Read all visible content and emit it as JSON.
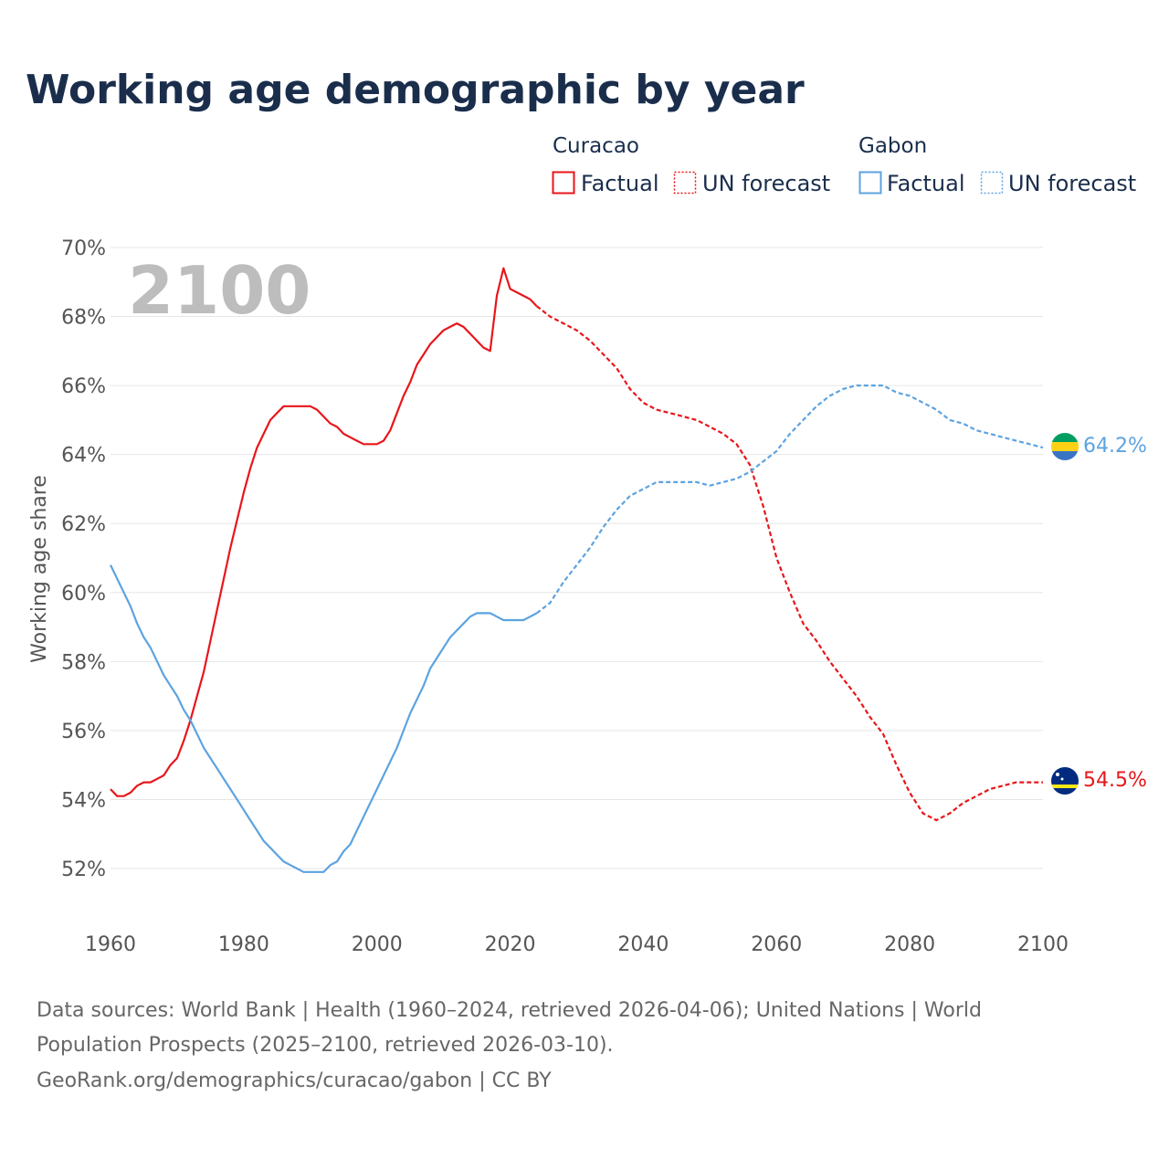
{
  "chart_data": {
    "type": "line",
    "title": "Working age demographic by year",
    "ylabel": "Working age share",
    "xlabel": "",
    "year_display": "2100",
    "xlim": [
      1960,
      2100
    ],
    "ylim": [
      51,
      70
    ],
    "x_ticks": [
      {
        "value": 1960,
        "label": "1960"
      },
      {
        "value": 1980,
        "label": "1980"
      },
      {
        "value": 2000,
        "label": "2000"
      },
      {
        "value": 2020,
        "label": "2020"
      },
      {
        "value": 2040,
        "label": "2040"
      },
      {
        "value": 2060,
        "label": "2060"
      },
      {
        "value": 2080,
        "label": "2080"
      },
      {
        "value": 2100,
        "label": "2100"
      }
    ],
    "y_ticks": [
      {
        "value": 52,
        "label": "52%"
      },
      {
        "value": 54,
        "label": "54%"
      },
      {
        "value": 56,
        "label": "56%"
      },
      {
        "value": 58,
        "label": "58%"
      },
      {
        "value": 60,
        "label": "60%"
      },
      {
        "value": 62,
        "label": "62%"
      },
      {
        "value": 64,
        "label": "64%"
      },
      {
        "value": 66,
        "label": "66%"
      },
      {
        "value": 68,
        "label": "68%"
      },
      {
        "value": 70,
        "label": "70%"
      }
    ],
    "legend": {
      "groups": [
        {
          "country": "Curacao",
          "factual_label": "Factual",
          "forecast_label": "UN forecast",
          "color": "#e8161b"
        },
        {
          "country": "Gabon",
          "factual_label": "Factual",
          "forecast_label": "UN forecast",
          "color": "#5da3e0"
        }
      ]
    },
    "series": [
      {
        "name": "Curacao",
        "color": "#e8161b",
        "end_label": "54.5%",
        "factual": [
          [
            1960,
            54.3
          ],
          [
            1961,
            54.1
          ],
          [
            1962,
            54.1
          ],
          [
            1963,
            54.2
          ],
          [
            1964,
            54.4
          ],
          [
            1965,
            54.5
          ],
          [
            1966,
            54.5
          ],
          [
            1967,
            54.6
          ],
          [
            1968,
            54.7
          ],
          [
            1969,
            55.0
          ],
          [
            1970,
            55.2
          ],
          [
            1971,
            55.7
          ],
          [
            1972,
            56.3
          ],
          [
            1973,
            57.0
          ],
          [
            1974,
            57.7
          ],
          [
            1975,
            58.6
          ],
          [
            1976,
            59.5
          ],
          [
            1977,
            60.4
          ],
          [
            1978,
            61.3
          ],
          [
            1979,
            62.1
          ],
          [
            1980,
            62.9
          ],
          [
            1981,
            63.6
          ],
          [
            1982,
            64.2
          ],
          [
            1983,
            64.6
          ],
          [
            1984,
            65.0
          ],
          [
            1985,
            65.2
          ],
          [
            1986,
            65.4
          ],
          [
            1987,
            65.4
          ],
          [
            1988,
            65.4
          ],
          [
            1989,
            65.4
          ],
          [
            1990,
            65.4
          ],
          [
            1991,
            65.3
          ],
          [
            1992,
            65.1
          ],
          [
            1993,
            64.9
          ],
          [
            1994,
            64.8
          ],
          [
            1995,
            64.6
          ],
          [
            1996,
            64.5
          ],
          [
            1997,
            64.4
          ],
          [
            1998,
            64.3
          ],
          [
            1999,
            64.3
          ],
          [
            2000,
            64.3
          ],
          [
            2001,
            64.4
          ],
          [
            2002,
            64.7
          ],
          [
            2003,
            65.2
          ],
          [
            2004,
            65.7
          ],
          [
            2005,
            66.1
          ],
          [
            2006,
            66.6
          ],
          [
            2007,
            66.9
          ],
          [
            2008,
            67.2
          ],
          [
            2009,
            67.4
          ],
          [
            2010,
            67.6
          ],
          [
            2011,
            67.7
          ],
          [
            2012,
            67.8
          ],
          [
            2013,
            67.7
          ],
          [
            2014,
            67.5
          ],
          [
            2015,
            67.3
          ],
          [
            2016,
            67.1
          ],
          [
            2017,
            67.0
          ],
          [
            2018,
            68.6
          ],
          [
            2019,
            69.4
          ],
          [
            2020,
            68.8
          ],
          [
            2021,
            68.7
          ],
          [
            2022,
            68.6
          ],
          [
            2023,
            68.5
          ],
          [
            2024,
            68.3
          ]
        ],
        "forecast": [
          [
            2024,
            68.3
          ],
          [
            2026,
            68.0
          ],
          [
            2028,
            67.8
          ],
          [
            2030,
            67.6
          ],
          [
            2032,
            67.3
          ],
          [
            2034,
            66.9
          ],
          [
            2036,
            66.5
          ],
          [
            2038,
            65.9
          ],
          [
            2040,
            65.5
          ],
          [
            2042,
            65.3
          ],
          [
            2044,
            65.2
          ],
          [
            2046,
            65.1
          ],
          [
            2048,
            65.0
          ],
          [
            2050,
            64.8
          ],
          [
            2052,
            64.6
          ],
          [
            2054,
            64.3
          ],
          [
            2056,
            63.7
          ],
          [
            2058,
            62.5
          ],
          [
            2060,
            61.0
          ],
          [
            2062,
            60.0
          ],
          [
            2064,
            59.1
          ],
          [
            2066,
            58.6
          ],
          [
            2068,
            58.0
          ],
          [
            2070,
            57.5
          ],
          [
            2072,
            57.0
          ],
          [
            2074,
            56.4
          ],
          [
            2076,
            55.9
          ],
          [
            2078,
            55.0
          ],
          [
            2080,
            54.2
          ],
          [
            2082,
            53.6
          ],
          [
            2084,
            53.4
          ],
          [
            2086,
            53.6
          ],
          [
            2088,
            53.9
          ],
          [
            2090,
            54.1
          ],
          [
            2092,
            54.3
          ],
          [
            2094,
            54.4
          ],
          [
            2096,
            54.5
          ],
          [
            2098,
            54.5
          ],
          [
            2100,
            54.5
          ]
        ]
      },
      {
        "name": "Gabon",
        "color": "#5da3e0",
        "end_label": "64.2%",
        "factual": [
          [
            1960,
            60.8
          ],
          [
            1961,
            60.4
          ],
          [
            1962,
            60.0
          ],
          [
            1963,
            59.6
          ],
          [
            1964,
            59.1
          ],
          [
            1965,
            58.7
          ],
          [
            1966,
            58.4
          ],
          [
            1967,
            58.0
          ],
          [
            1968,
            57.6
          ],
          [
            1969,
            57.3
          ],
          [
            1970,
            57.0
          ],
          [
            1971,
            56.6
          ],
          [
            1972,
            56.3
          ],
          [
            1973,
            55.9
          ],
          [
            1974,
            55.5
          ],
          [
            1975,
            55.2
          ],
          [
            1976,
            54.9
          ],
          [
            1977,
            54.6
          ],
          [
            1978,
            54.3
          ],
          [
            1979,
            54.0
          ],
          [
            1980,
            53.7
          ],
          [
            1981,
            53.4
          ],
          [
            1982,
            53.1
          ],
          [
            1983,
            52.8
          ],
          [
            1984,
            52.6
          ],
          [
            1985,
            52.4
          ],
          [
            1986,
            52.2
          ],
          [
            1987,
            52.1
          ],
          [
            1988,
            52.0
          ],
          [
            1989,
            51.9
          ],
          [
            1990,
            51.9
          ],
          [
            1991,
            51.9
          ],
          [
            1992,
            51.9
          ],
          [
            1993,
            52.1
          ],
          [
            1994,
            52.2
          ],
          [
            1995,
            52.5
          ],
          [
            1996,
            52.7
          ],
          [
            1997,
            53.1
          ],
          [
            1998,
            53.5
          ],
          [
            1999,
            53.9
          ],
          [
            2000,
            54.3
          ],
          [
            2001,
            54.7
          ],
          [
            2002,
            55.1
          ],
          [
            2003,
            55.5
          ],
          [
            2004,
            56.0
          ],
          [
            2005,
            56.5
          ],
          [
            2006,
            56.9
          ],
          [
            2007,
            57.3
          ],
          [
            2008,
            57.8
          ],
          [
            2009,
            58.1
          ],
          [
            2010,
            58.4
          ],
          [
            2011,
            58.7
          ],
          [
            2012,
            58.9
          ],
          [
            2013,
            59.1
          ],
          [
            2014,
            59.3
          ],
          [
            2015,
            59.4
          ],
          [
            2016,
            59.4
          ],
          [
            2017,
            59.4
          ],
          [
            2018,
            59.3
          ],
          [
            2019,
            59.2
          ],
          [
            2020,
            59.2
          ],
          [
            2021,
            59.2
          ],
          [
            2022,
            59.2
          ],
          [
            2023,
            59.3
          ],
          [
            2024,
            59.4
          ]
        ],
        "forecast": [
          [
            2024,
            59.4
          ],
          [
            2026,
            59.7
          ],
          [
            2028,
            60.3
          ],
          [
            2030,
            60.8
          ],
          [
            2032,
            61.3
          ],
          [
            2034,
            61.9
          ],
          [
            2036,
            62.4
          ],
          [
            2038,
            62.8
          ],
          [
            2040,
            63.0
          ],
          [
            2042,
            63.2
          ],
          [
            2044,
            63.2
          ],
          [
            2046,
            63.2
          ],
          [
            2048,
            63.2
          ],
          [
            2050,
            63.1
          ],
          [
            2052,
            63.2
          ],
          [
            2054,
            63.3
          ],
          [
            2056,
            63.5
          ],
          [
            2058,
            63.8
          ],
          [
            2060,
            64.1
          ],
          [
            2062,
            64.6
          ],
          [
            2064,
            65.0
          ],
          [
            2066,
            65.4
          ],
          [
            2068,
            65.7
          ],
          [
            2070,
            65.9
          ],
          [
            2072,
            66.0
          ],
          [
            2074,
            66.0
          ],
          [
            2076,
            66.0
          ],
          [
            2078,
            65.8
          ],
          [
            2080,
            65.7
          ],
          [
            2082,
            65.5
          ],
          [
            2084,
            65.3
          ],
          [
            2086,
            65.0
          ],
          [
            2088,
            64.9
          ],
          [
            2090,
            64.7
          ],
          [
            2092,
            64.6
          ],
          [
            2094,
            64.5
          ],
          [
            2096,
            64.4
          ],
          [
            2098,
            64.3
          ],
          [
            2100,
            64.2
          ]
        ]
      }
    ]
  },
  "footer": {
    "source_line1": "Data sources: World Bank | Health (1960–2024, retrieved 2026-04-06); United Nations | World",
    "source_line2": "Population Prospects (2025–2100, retrieved 2026-03-10).",
    "credit": "GeoRank.org/demographics/curacao/gabon | CC BY"
  },
  "flags": {
    "curacao": {
      "colors": [
        "#002b7f",
        "#f9e814",
        "#ffffff"
      ],
      "icon": "curacao-flag-icon"
    },
    "gabon": {
      "colors": [
        "#009e60",
        "#fcd116",
        "#3a75c4"
      ],
      "icon": "gabon-flag-icon"
    }
  }
}
